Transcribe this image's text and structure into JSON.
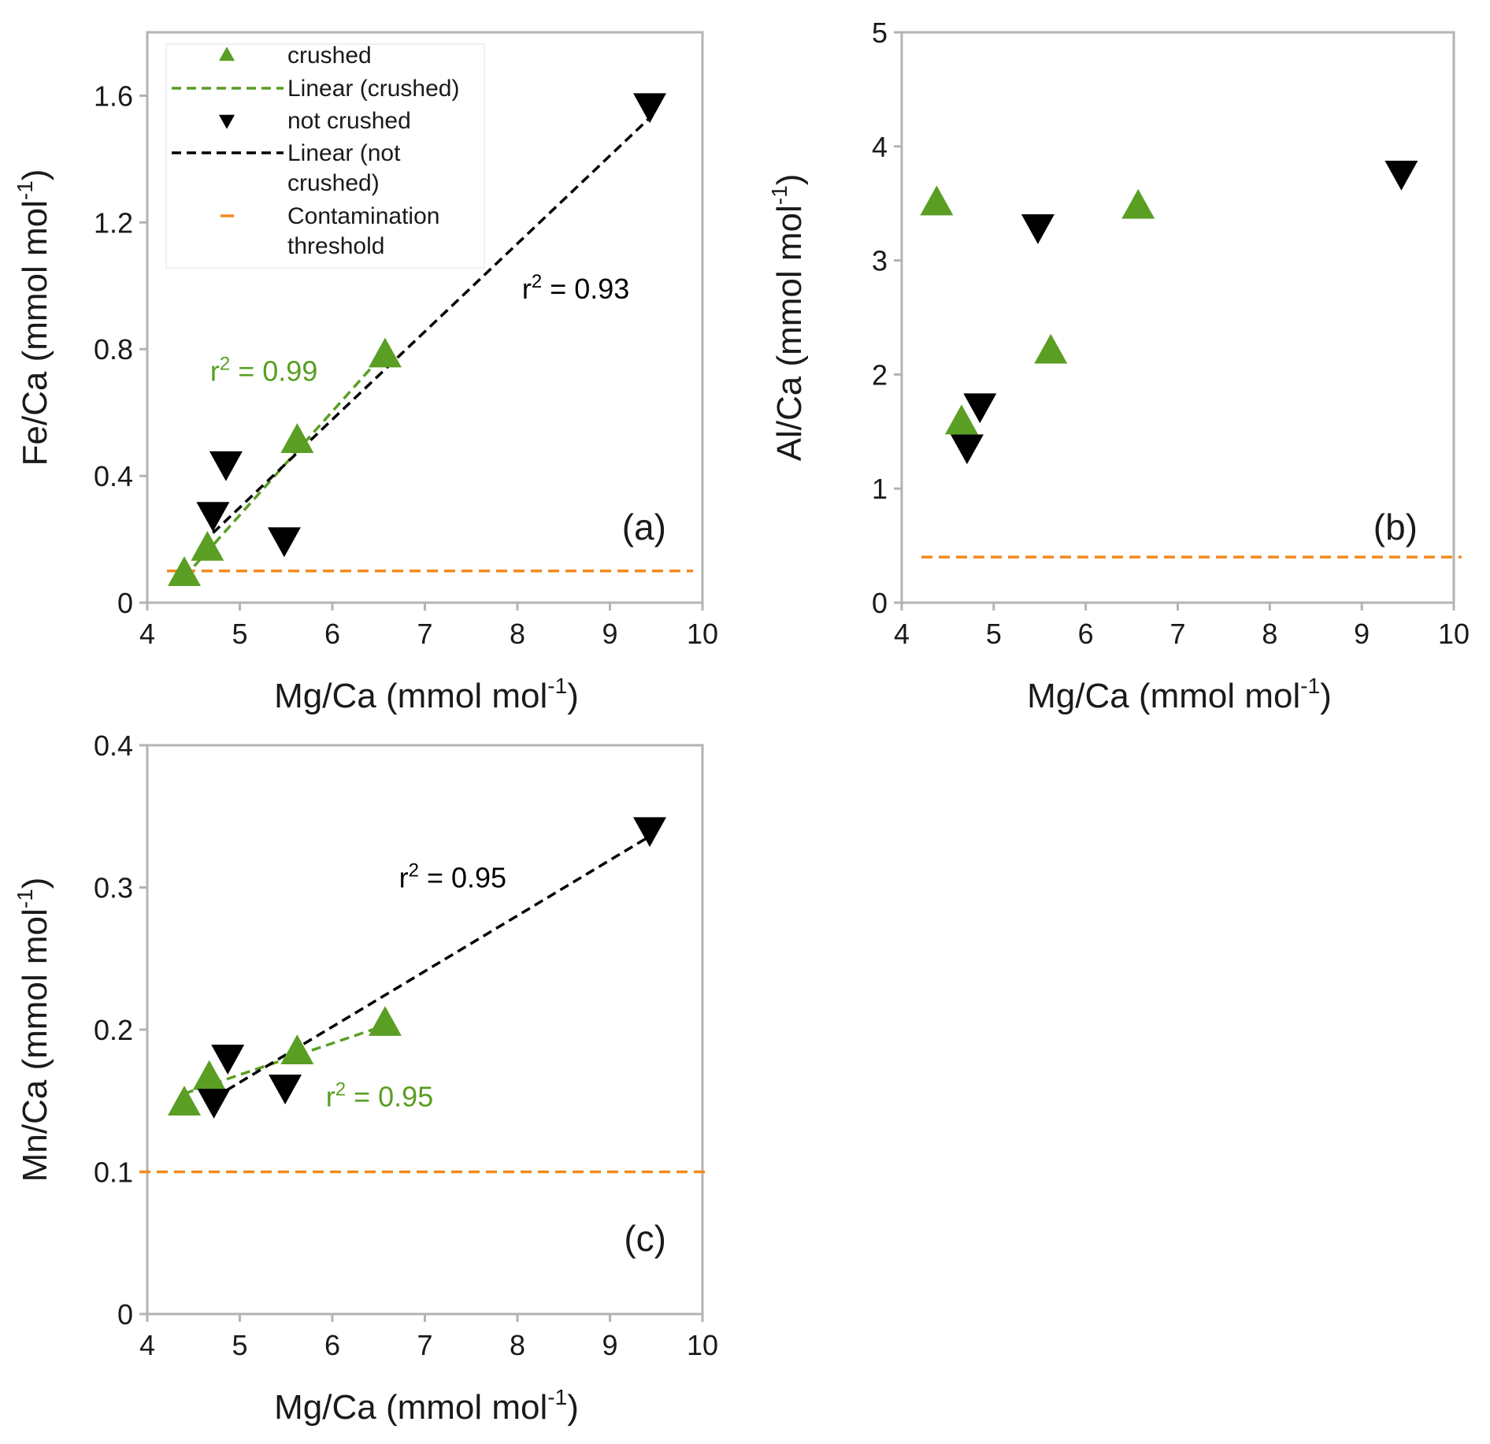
{
  "colors": {
    "crushed": "#5a9e23",
    "not_crushed": "#000000",
    "threshold": "#f28a1e",
    "frame": "#b3b3b3",
    "text": "#1a1a1a"
  },
  "legend": {
    "items": [
      {
        "kind": "marker-up",
        "color": "crushed",
        "label_lines": [
          "crushed"
        ]
      },
      {
        "kind": "dash",
        "color": "crushed",
        "label_lines": [
          "Linear (crushed)"
        ]
      },
      {
        "kind": "marker-down",
        "color": "not_crushed",
        "label_lines": [
          "not crushed"
        ]
      },
      {
        "kind": "dash",
        "color": "not_crushed",
        "label_lines": [
          "Linear (not",
          "crushed)"
        ]
      },
      {
        "kind": "short-dash",
        "color": "threshold",
        "label_lines": [
          "Contamination",
          "threshold"
        ]
      }
    ]
  },
  "chart_data": [
    {
      "id": "a",
      "type": "scatter",
      "panel_label": "(a)",
      "xlabel": "Mg/Ca (mmol mol",
      "xlabel_sup": "-1",
      "xlabel_end": ")",
      "ylabel": "Fe/Ca (mmol mol",
      "ylabel_sup": "-1",
      "ylabel_end": ")",
      "xlim": [
        4,
        10
      ],
      "ylim": [
        0,
        1.8
      ],
      "xticks": [
        4,
        5,
        6,
        7,
        8,
        9,
        10
      ],
      "yticks": [
        0,
        0.4,
        0.8,
        1.2,
        1.6
      ],
      "ytick_labels": [
        "0",
        "0.4",
        "0.8",
        "1.2",
        "1.6"
      ],
      "threshold": 0.1,
      "has_legend": true,
      "series": [
        {
          "name": "crushed",
          "marker": "up",
          "x": [
            4.4,
            4.65,
            5.62,
            6.57
          ],
          "y": [
            0.09,
            0.17,
            0.51,
            0.78
          ]
        },
        {
          "name": "not crushed",
          "marker": "down",
          "x": [
            4.71,
            4.85,
            5.48,
            9.43
          ],
          "y": [
            0.28,
            0.44,
            0.2,
            1.57
          ]
        }
      ],
      "fits": [
        {
          "name": "Linear (crushed)",
          "color": "crushed",
          "x": [
            4.4,
            6.57
          ],
          "y": [
            0.08,
            0.79
          ]
        },
        {
          "name": "Linear (not crushed)",
          "color": "not_crushed",
          "x": [
            4.71,
            9.43
          ],
          "y": [
            0.22,
            1.53
          ]
        }
      ],
      "annotations": [
        {
          "pre": "r",
          "sup": "2",
          "post": " = 0.93",
          "color": "not_crushed",
          "x": 8.05,
          "y": 0.96
        },
        {
          "pre": "r",
          "sup": "2",
          "post": " = 0.99",
          "color": "crushed",
          "x": 4.68,
          "y": 0.7
        }
      ]
    },
    {
      "id": "b",
      "type": "scatter",
      "panel_label": "(b)",
      "xlabel": "Mg/Ca (mmol mol",
      "xlabel_sup": "-1",
      "xlabel_end": ")",
      "ylabel": "Al/Ca (mmol mol",
      "ylabel_sup": "-1",
      "ylabel_end": ")",
      "xlim": [
        4,
        10
      ],
      "ylim": [
        0,
        5
      ],
      "xticks": [
        4,
        5,
        6,
        7,
        8,
        9,
        10
      ],
      "yticks": [
        0,
        1,
        2,
        3,
        4,
        5
      ],
      "ytick_labels": [
        "0",
        "1",
        "2",
        "3",
        "4",
        "5"
      ],
      "threshold": 0.4,
      "has_legend": false,
      "series": [
        {
          "name": "crushed",
          "marker": "up",
          "x": [
            4.38,
            4.65,
            5.62,
            6.57
          ],
          "y": [
            3.5,
            1.58,
            2.2,
            3.47
          ]
        },
        {
          "name": "not crushed",
          "marker": "down",
          "x": [
            4.71,
            4.85,
            5.48,
            9.43
          ],
          "y": [
            1.37,
            1.73,
            3.3,
            3.77
          ]
        }
      ],
      "fits": [],
      "annotations": []
    },
    {
      "id": "c",
      "type": "scatter",
      "panel_label": "(c)",
      "xlabel": "Mg/Ca (mmol mol",
      "xlabel_sup": "-1",
      "xlabel_end": ")",
      "ylabel": "Mn/Ca (mmol mol",
      "ylabel_sup": "-1",
      "ylabel_end": ")",
      "xlim": [
        4,
        10
      ],
      "ylim": [
        0,
        0.4
      ],
      "xticks": [
        4,
        5,
        6,
        7,
        8,
        9,
        10
      ],
      "yticks": [
        0,
        0.1,
        0.2,
        0.3,
        0.4
      ],
      "ytick_labels": [
        "0",
        "0.1",
        "0.2",
        "0.3",
        "0.4"
      ],
      "threshold": 0.1,
      "has_legend": false,
      "series": [
        {
          "name": "crushed",
          "marker": "up",
          "x": [
            4.4,
            4.67,
            5.62,
            6.57
          ],
          "y": [
            0.148,
            0.166,
            0.184,
            0.204
          ]
        },
        {
          "name": "not crushed",
          "marker": "down",
          "x": [
            4.72,
            4.87,
            5.49,
            9.43
          ],
          "y": [
            0.15,
            0.181,
            0.16,
            0.341
          ]
        }
      ],
      "fits": [
        {
          "name": "Linear (crushed)",
          "color": "crushed",
          "x": [
            4.4,
            6.57
          ],
          "y": [
            0.155,
            0.203
          ]
        },
        {
          "name": "Linear (not crushed)",
          "color": "not_crushed",
          "x": [
            4.72,
            9.43
          ],
          "y": [
            0.152,
            0.336
          ]
        }
      ],
      "annotations": [
        {
          "pre": "r",
          "sup": "2",
          "post": " = 0.95",
          "color": "not_crushed",
          "x": 6.72,
          "y": 0.3
        },
        {
          "pre": "r",
          "sup": "2",
          "post": " = 0.95",
          "color": "crushed",
          "x": 5.93,
          "y": 0.146
        }
      ]
    }
  ]
}
